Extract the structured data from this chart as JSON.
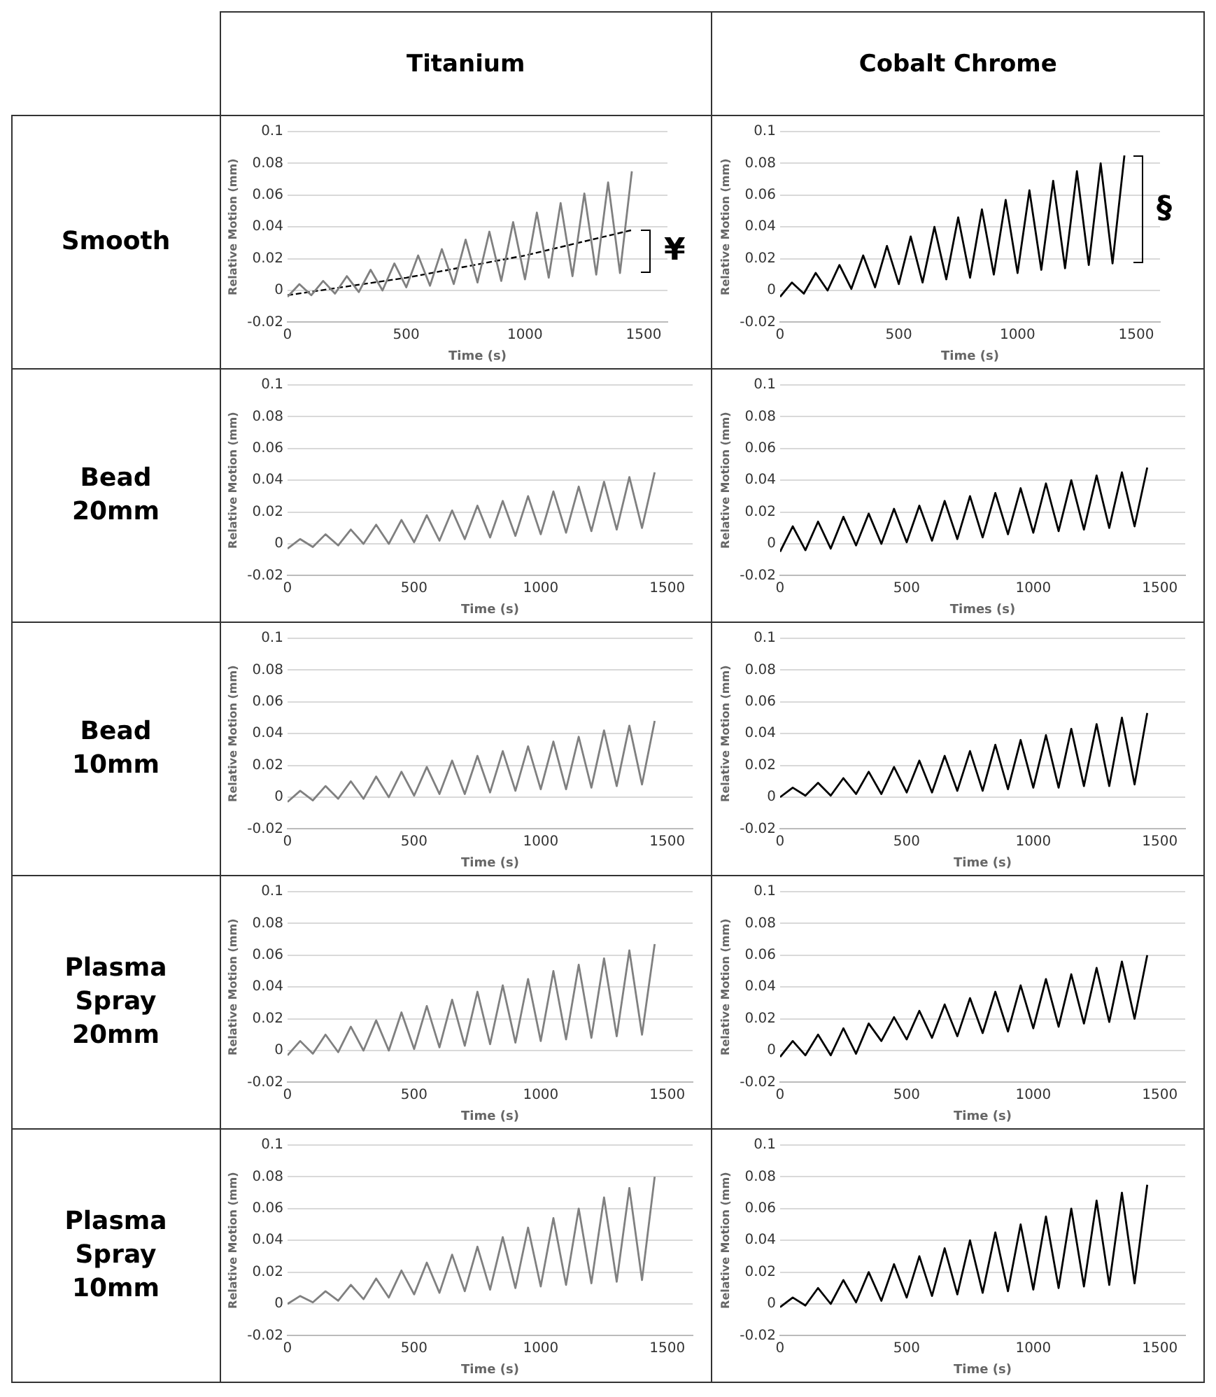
{
  "chart_data": [
    {
      "type": "other",
      "annotations": [
        "Titanium",
        "Cobalt Chrome",
        "Smooth",
        "Bead 20mm",
        "Bead 10mm",
        "Plasma Spray 20mm",
        "Plasma Spray 10mm"
      ]
    },
    {
      "type": "line",
      "xlabel": "Time (s)",
      "ylabel": "Relative Motion (mm)",
      "xlim": [
        0,
        1600
      ],
      "xticks": [
        0,
        500,
        1000,
        1500
      ],
      "ylim": [
        -0.02,
        0.1
      ],
      "yticks": [
        -0.02,
        0,
        0.02,
        0.04,
        0.06,
        0.08,
        0.1
      ],
      "grid": "y",
      "marker": "none",
      "x": [
        0,
        50,
        100,
        150,
        200,
        250,
        300,
        350,
        400,
        450,
        500,
        550,
        600,
        650,
        700,
        750,
        800,
        850,
        900,
        950,
        1000,
        1050,
        1100,
        1150,
        1200,
        1250,
        1300,
        1350,
        1400,
        1450
      ],
      "series": [
        {
          "color": "#808080",
          "values": [
            -0.004,
            0.004,
            -0.003,
            0.006,
            -0.002,
            0.009,
            -0.001,
            0.013,
            0,
            0.017,
            0.002,
            0.022,
            0.003,
            0.026,
            0.004,
            0.032,
            0.005,
            0.037,
            0.006,
            0.043,
            0.007,
            0.049,
            0.008,
            0.055,
            0.009,
            0.061,
            0.01,
            0.068,
            0.011,
            0.075
          ]
        },
        {
          "type": "line",
          "color": "#000000",
          "line_style": "dashed",
          "x": [
            0,
            500,
            1000,
            1450
          ],
          "values": [
            -0.003,
            0.008,
            0.022,
            0.038
          ]
        }
      ],
      "annotations": [
        "¥"
      ]
    },
    {
      "type": "line",
      "xlabel": "Time (s)",
      "ylabel": "Relative Motion (mm)",
      "xlim": [
        0,
        1600
      ],
      "xticks": [
        0,
        500,
        1000,
        1500
      ],
      "ylim": [
        -0.02,
        0.1
      ],
      "yticks": [
        -0.02,
        0,
        0.02,
        0.04,
        0.06,
        0.08,
        0.1
      ],
      "grid": "y",
      "marker": "none",
      "x": [
        0,
        50,
        100,
        150,
        200,
        250,
        300,
        350,
        400,
        450,
        500,
        550,
        600,
        650,
        700,
        750,
        800,
        850,
        900,
        950,
        1000,
        1050,
        1100,
        1150,
        1200,
        1250,
        1300,
        1350,
        1400,
        1450
      ],
      "series": [
        {
          "color": "#000000",
          "values": [
            -0.004,
            0.005,
            -0.002,
            0.011,
            0,
            0.016,
            0.001,
            0.022,
            0.002,
            0.028,
            0.004,
            0.034,
            0.005,
            0.04,
            0.007,
            0.046,
            0.008,
            0.051,
            0.01,
            0.057,
            0.011,
            0.063,
            0.013,
            0.069,
            0.014,
            0.075,
            0.016,
            0.08,
            0.017,
            0.085
          ]
        }
      ],
      "annotations": [
        "§"
      ]
    },
    {
      "type": "line",
      "xlabel": "Time (s)",
      "ylabel": "Relative Motion (mm)",
      "xlim": [
        0,
        1600
      ],
      "xticks": [
        0,
        500,
        1000,
        1500
      ],
      "ylim": [
        -0.02,
        0.1
      ],
      "yticks": [
        -0.02,
        0,
        0.02,
        0.04,
        0.06,
        0.08,
        0.1
      ],
      "grid": "y",
      "marker": "none",
      "x": [
        0,
        50,
        100,
        150,
        200,
        250,
        300,
        350,
        400,
        450,
        500,
        550,
        600,
        650,
        700,
        750,
        800,
        850,
        900,
        950,
        1000,
        1050,
        1100,
        1150,
        1200,
        1250,
        1300,
        1350,
        1400,
        1450
      ],
      "series": [
        {
          "color": "#808080",
          "values": [
            -0.003,
            0.003,
            -0.002,
            0.006,
            -0.001,
            0.009,
            0,
            0.012,
            0,
            0.015,
            0.001,
            0.018,
            0.002,
            0.021,
            0.003,
            0.024,
            0.004,
            0.027,
            0.005,
            0.03,
            0.006,
            0.033,
            0.007,
            0.036,
            0.008,
            0.039,
            0.009,
            0.042,
            0.01,
            0.045
          ]
        }
      ]
    },
    {
      "type": "line",
      "xlabel": "Times (s)",
      "ylabel": "Relative Motion (mm)",
      "xlim": [
        0,
        1600
      ],
      "xticks": [
        0,
        500,
        1000,
        1500
      ],
      "ylim": [
        -0.02,
        0.1
      ],
      "yticks": [
        -0.02,
        0,
        0.02,
        0.04,
        0.06,
        0.08,
        0.1
      ],
      "grid": "y",
      "marker": "none",
      "x": [
        0,
        50,
        100,
        150,
        200,
        250,
        300,
        350,
        400,
        450,
        500,
        550,
        600,
        650,
        700,
        750,
        800,
        850,
        900,
        950,
        1000,
        1050,
        1100,
        1150,
        1200,
        1250,
        1300,
        1350,
        1400,
        1450
      ],
      "series": [
        {
          "color": "#000000",
          "values": [
            -0.005,
            0.011,
            -0.004,
            0.014,
            -0.003,
            0.017,
            -0.001,
            0.019,
            0,
            0.022,
            0.001,
            0.024,
            0.002,
            0.027,
            0.003,
            0.03,
            0.004,
            0.032,
            0.006,
            0.035,
            0.007,
            0.038,
            0.008,
            0.04,
            0.009,
            0.043,
            0.01,
            0.045,
            0.011,
            0.048
          ]
        }
      ]
    },
    {
      "type": "line",
      "xlabel": "Time (s)",
      "ylabel": "Relative Motion (mm)",
      "xlim": [
        0,
        1600
      ],
      "xticks": [
        0,
        500,
        1000,
        1500
      ],
      "ylim": [
        -0.02,
        0.1
      ],
      "yticks": [
        -0.02,
        0,
        0.02,
        0.04,
        0.06,
        0.08,
        0.1
      ],
      "grid": "y",
      "marker": "none",
      "x": [
        0,
        50,
        100,
        150,
        200,
        250,
        300,
        350,
        400,
        450,
        500,
        550,
        600,
        650,
        700,
        750,
        800,
        850,
        900,
        950,
        1000,
        1050,
        1100,
        1150,
        1200,
        1250,
        1300,
        1350,
        1400,
        1450
      ],
      "series": [
        {
          "color": "#808080",
          "values": [
            -0.003,
            0.004,
            -0.002,
            0.007,
            -0.001,
            0.01,
            -0.001,
            0.013,
            0,
            0.016,
            0.001,
            0.019,
            0.002,
            0.023,
            0.002,
            0.026,
            0.003,
            0.029,
            0.004,
            0.032,
            0.005,
            0.035,
            0.005,
            0.038,
            0.006,
            0.042,
            0.007,
            0.045,
            0.008,
            0.048
          ]
        }
      ]
    },
    {
      "type": "line",
      "xlabel": "Time (s)",
      "ylabel": "Relative Motion (mm)",
      "xlim": [
        0,
        1600
      ],
      "xticks": [
        0,
        500,
        1000,
        1500
      ],
      "ylim": [
        -0.02,
        0.1
      ],
      "yticks": [
        -0.02,
        0,
        0.02,
        0.04,
        0.06,
        0.08,
        0.1
      ],
      "grid": "y",
      "marker": "none",
      "x": [
        0,
        50,
        100,
        150,
        200,
        250,
        300,
        350,
        400,
        450,
        500,
        550,
        600,
        650,
        700,
        750,
        800,
        850,
        900,
        950,
        1000,
        1050,
        1100,
        1150,
        1200,
        1250,
        1300,
        1350,
        1400,
        1450
      ],
      "series": [
        {
          "color": "#000000",
          "values": [
            0,
            0.006,
            0.001,
            0.009,
            0.001,
            0.012,
            0.002,
            0.016,
            0.002,
            0.019,
            0.003,
            0.023,
            0.003,
            0.026,
            0.004,
            0.029,
            0.004,
            0.033,
            0.005,
            0.036,
            0.006,
            0.039,
            0.006,
            0.043,
            0.007,
            0.046,
            0.007,
            0.05,
            0.008,
            0.053
          ]
        }
      ]
    },
    {
      "type": "line",
      "xlabel": "Time (s)",
      "ylabel": "Relative Motion (mm)",
      "xlim": [
        0,
        1600
      ],
      "xticks": [
        0,
        500,
        1000,
        1500
      ],
      "ylim": [
        -0.02,
        0.1
      ],
      "yticks": [
        -0.02,
        0,
        0.02,
        0.04,
        0.06,
        0.08,
        0.1
      ],
      "grid": "y",
      "marker": "none",
      "x": [
        0,
        50,
        100,
        150,
        200,
        250,
        300,
        350,
        400,
        450,
        500,
        550,
        600,
        650,
        700,
        750,
        800,
        850,
        900,
        950,
        1000,
        1050,
        1100,
        1150,
        1200,
        1250,
        1300,
        1350,
        1400,
        1450
      ],
      "series": [
        {
          "color": "#808080",
          "values": [
            -0.003,
            0.006,
            -0.002,
            0.01,
            -0.001,
            0.015,
            0,
            0.019,
            0,
            0.024,
            0.001,
            0.028,
            0.002,
            0.032,
            0.003,
            0.037,
            0.004,
            0.041,
            0.005,
            0.045,
            0.006,
            0.05,
            0.007,
            0.054,
            0.008,
            0.058,
            0.009,
            0.063,
            0.01,
            0.067
          ]
        }
      ]
    },
    {
      "type": "line",
      "xlabel": "Time (s)",
      "ylabel": "Relative Motion (mm)",
      "xlim": [
        0,
        1600
      ],
      "xticks": [
        0,
        500,
        1000,
        1500
      ],
      "ylim": [
        -0.02,
        0.1
      ],
      "yticks": [
        -0.02,
        0,
        0.02,
        0.04,
        0.06,
        0.08,
        0.1
      ],
      "grid": "y",
      "marker": "none",
      "x": [
        0,
        50,
        100,
        150,
        200,
        250,
        300,
        350,
        400,
        450,
        500,
        550,
        600,
        650,
        700,
        750,
        800,
        850,
        900,
        950,
        1000,
        1050,
        1100,
        1150,
        1200,
        1250,
        1300,
        1350,
        1400,
        1450
      ],
      "series": [
        {
          "color": "#000000",
          "values": [
            -0.004,
            0.006,
            -0.003,
            0.01,
            -0.003,
            0.014,
            -0.002,
            0.017,
            0.006,
            0.021,
            0.007,
            0.025,
            0.008,
            0.029,
            0.009,
            0.033,
            0.011,
            0.037,
            0.012,
            0.041,
            0.014,
            0.045,
            0.015,
            0.048,
            0.017,
            0.052,
            0.018,
            0.056,
            0.02,
            0.06
          ]
        }
      ]
    },
    {
      "type": "line",
      "xlabel": "Time (s)",
      "ylabel": "Relative Motion (mm)",
      "xlim": [
        0,
        1600
      ],
      "xticks": [
        0,
        500,
        1000,
        1500
      ],
      "ylim": [
        -0.02,
        0.1
      ],
      "yticks": [
        -0.02,
        0,
        0.02,
        0.04,
        0.06,
        0.08,
        0.1
      ],
      "grid": "y",
      "marker": "none",
      "x": [
        0,
        50,
        100,
        150,
        200,
        250,
        300,
        350,
        400,
        450,
        500,
        550,
        600,
        650,
        700,
        750,
        800,
        850,
        900,
        950,
        1000,
        1050,
        1100,
        1150,
        1200,
        1250,
        1300,
        1350,
        1400,
        1450
      ],
      "series": [
        {
          "color": "#808080",
          "values": [
            0,
            0.005,
            0.001,
            0.008,
            0.002,
            0.012,
            0.003,
            0.016,
            0.004,
            0.021,
            0.006,
            0.026,
            0.007,
            0.031,
            0.008,
            0.036,
            0.009,
            0.042,
            0.01,
            0.048,
            0.011,
            0.054,
            0.012,
            0.06,
            0.013,
            0.067,
            0.014,
            0.073,
            0.015,
            0.08
          ]
        }
      ]
    },
    {
      "type": "line",
      "xlabel": "Time (s)",
      "ylabel": "Relative Motion (mm)",
      "xlim": [
        0,
        1600
      ],
      "xticks": [
        0,
        500,
        1000,
        1500
      ],
      "ylim": [
        -0.02,
        0.1
      ],
      "yticks": [
        -0.02,
        0,
        0.02,
        0.04,
        0.06,
        0.08,
        0.1
      ],
      "grid": "y",
      "marker": "none",
      "x": [
        0,
        50,
        100,
        150,
        200,
        250,
        300,
        350,
        400,
        450,
        500,
        550,
        600,
        650,
        700,
        750,
        800,
        850,
        900,
        950,
        1000,
        1050,
        1100,
        1150,
        1200,
        1250,
        1300,
        1350,
        1400,
        1450
      ],
      "series": [
        {
          "color": "#000000",
          "values": [
            -0.002,
            0.004,
            -0.001,
            0.01,
            0,
            0.015,
            0.001,
            0.02,
            0.002,
            0.025,
            0.004,
            0.03,
            0.005,
            0.035,
            0.006,
            0.04,
            0.007,
            0.045,
            0.008,
            0.05,
            0.009,
            0.055,
            0.01,
            0.06,
            0.011,
            0.065,
            0.012,
            0.07,
            0.013,
            0.075
          ]
        }
      ]
    }
  ]
}
